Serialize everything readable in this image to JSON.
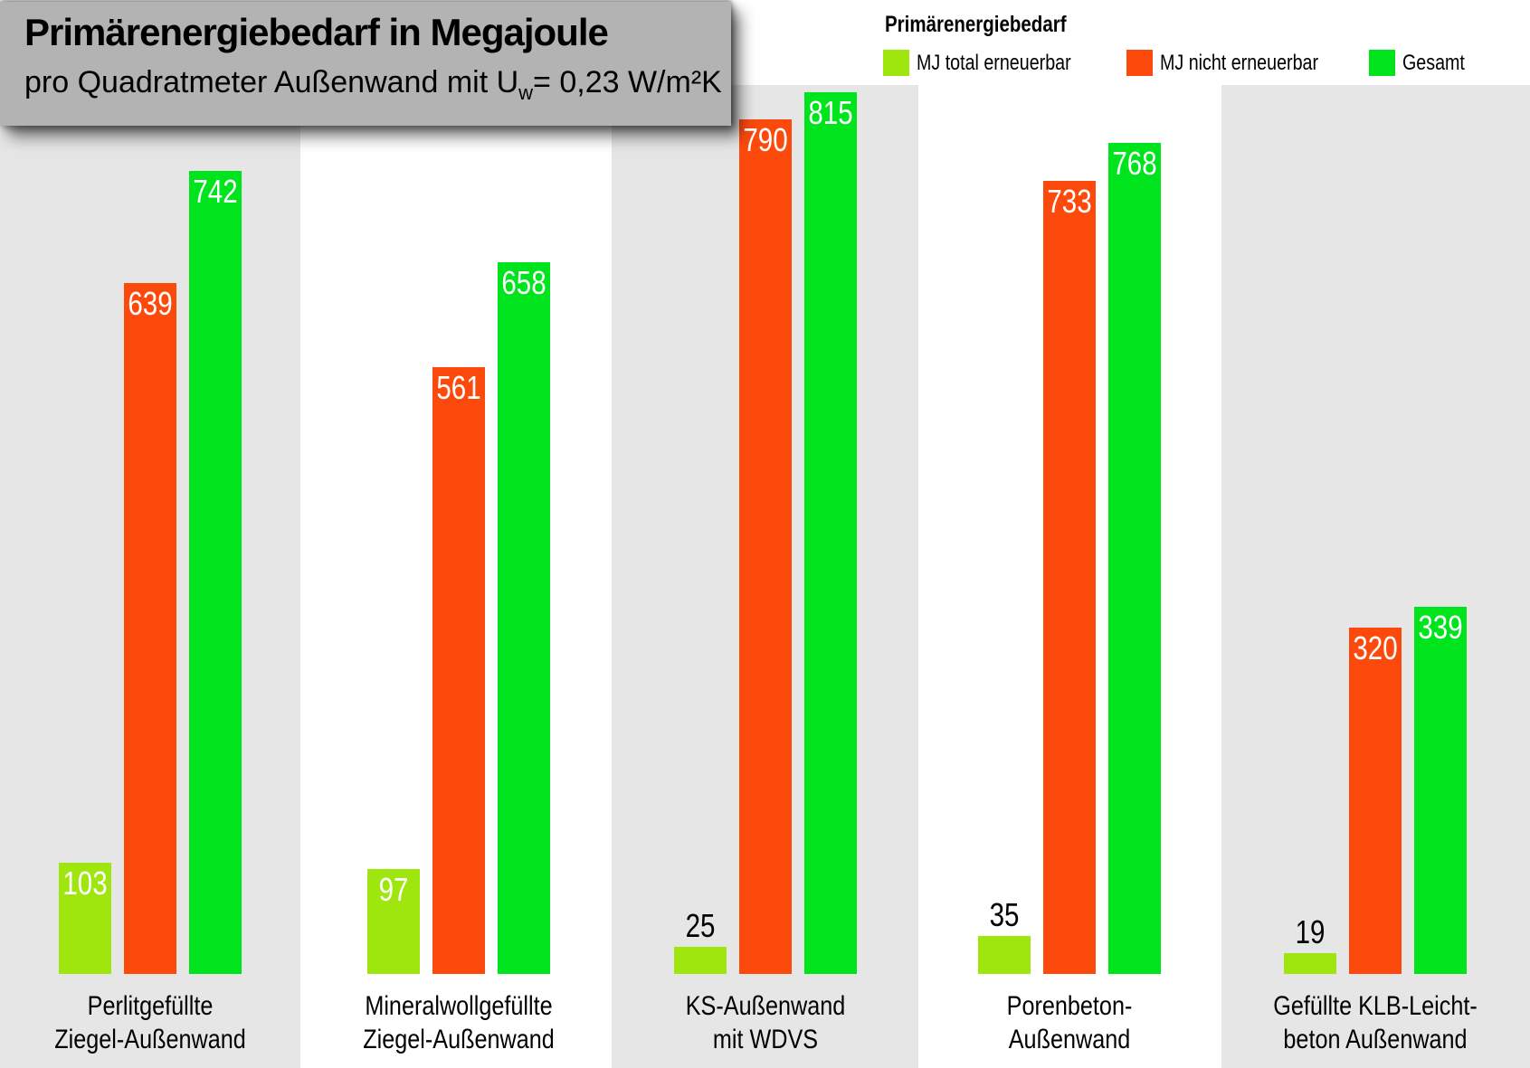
{
  "title": {
    "heading": "Primärenergiebedarf in Megajoule",
    "subtitle_prefix": "pro Quadratmeter Außenwand mit U",
    "subtitle_sub": "w",
    "subtitle_suffix": "= 0,23 W/m²K"
  },
  "legend": {
    "title": "Primärenergiebedarf"
  },
  "colors": {
    "stripe_bg": "#e6e6e6",
    "title_box_bg": "#b3b3b3",
    "series_total_erneuerbar": "#9fe60f",
    "series_nicht_erneuerbar": "#fc4a0d",
    "series_gesamt": "#00e41e"
  },
  "chart_data": {
    "type": "bar",
    "title": "Primärenergiebedarf in Megajoule",
    "subtitle": "pro Quadratmeter Außenwand mit Uw = 0,23 W/m²K",
    "unit": "MJ",
    "value_axis_range": [
      0,
      815
    ],
    "grid": false,
    "legend_position": "top-right",
    "value_labels_shown": true,
    "categories": [
      "Perlitgefüllte Ziegel-Außenwand",
      "Mineralwollgefüllte Ziegel-Außenwand",
      "KS-Außenwand mit WDVS",
      "Porenbeton-Außenwand",
      "Gefüllte KLB-Leichtbeton Außenwand"
    ],
    "category_lines": [
      [
        "Perlitgefüllte",
        "Ziegel-Außenwand"
      ],
      [
        "Mineralwollgefüllte",
        "Ziegel-Außenwand"
      ],
      [
        "KS-Außenwand",
        "mit WDVS"
      ],
      [
        "Porenbeton-",
        "Außenwand"
      ],
      [
        "Gefüllte KLB-Leicht-",
        "beton Außenwand"
      ]
    ],
    "series": [
      {
        "name": "MJ total erneuerbar",
        "color": "#9fe60f",
        "values": [
          103,
          97,
          25,
          35,
          19
        ]
      },
      {
        "name": "MJ nicht erneuerbar",
        "color": "#fc4a0d",
        "values": [
          639,
          561,
          790,
          733,
          320
        ]
      },
      {
        "name": "Gesamt",
        "color": "#00e41e",
        "values": [
          742,
          658,
          815,
          768,
          339
        ]
      }
    ]
  }
}
